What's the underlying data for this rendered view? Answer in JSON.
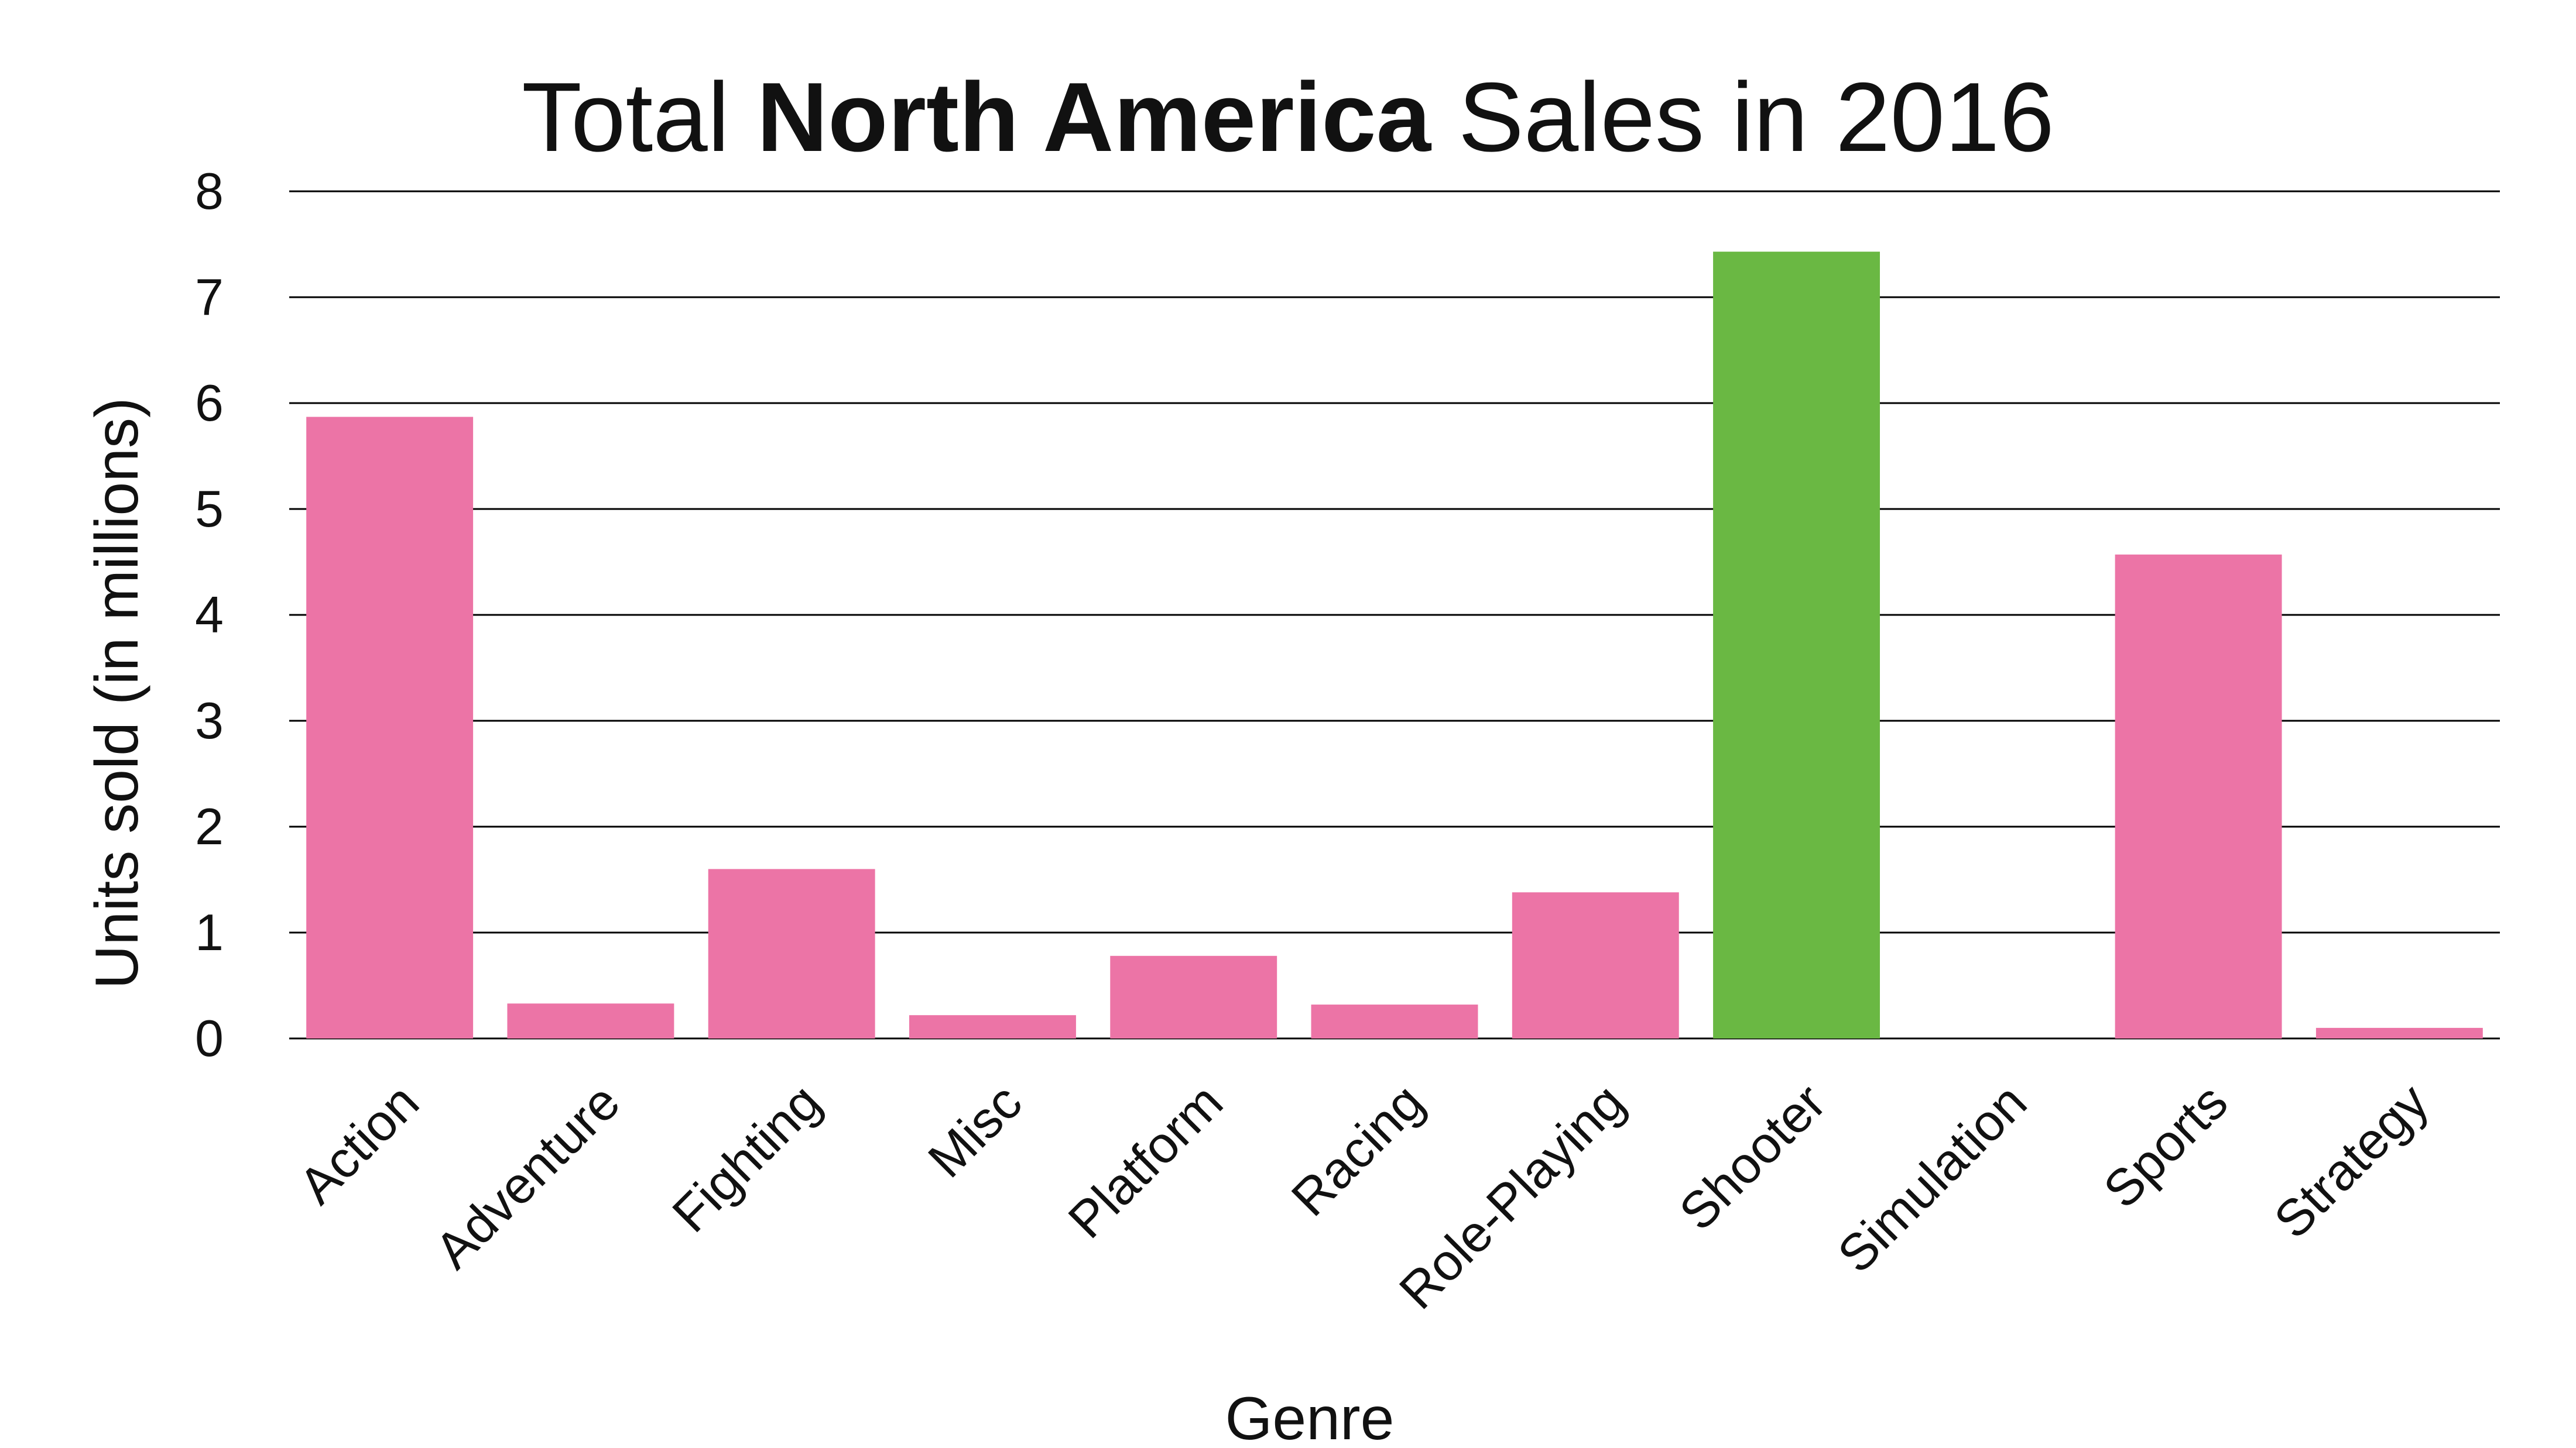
{
  "chart_data": {
    "type": "bar",
    "title": {
      "prefix": "Total ",
      "emphasis": "North America",
      "suffix": " Sales in 2016"
    },
    "xlabel": "Genre",
    "ylabel": "Units sold (in millions)",
    "ylim": [
      0,
      8
    ],
    "yticks": [
      0,
      1,
      2,
      3,
      4,
      5,
      6,
      7,
      8
    ],
    "grid": true,
    "categories": [
      "Action",
      "Adventure",
      "Fighting",
      "Misc",
      "Platform",
      "Racing",
      "Role-Playing",
      "Shooter",
      "Simulation",
      "Sports",
      "Strategy"
    ],
    "values": [
      5.87,
      0.33,
      1.6,
      0.22,
      0.78,
      0.32,
      1.38,
      7.43,
      0.0,
      4.57,
      0.1
    ],
    "colors": {
      "default": "#EC74A6",
      "highlight": "#6AB843"
    },
    "highlight_category": "Shooter"
  }
}
